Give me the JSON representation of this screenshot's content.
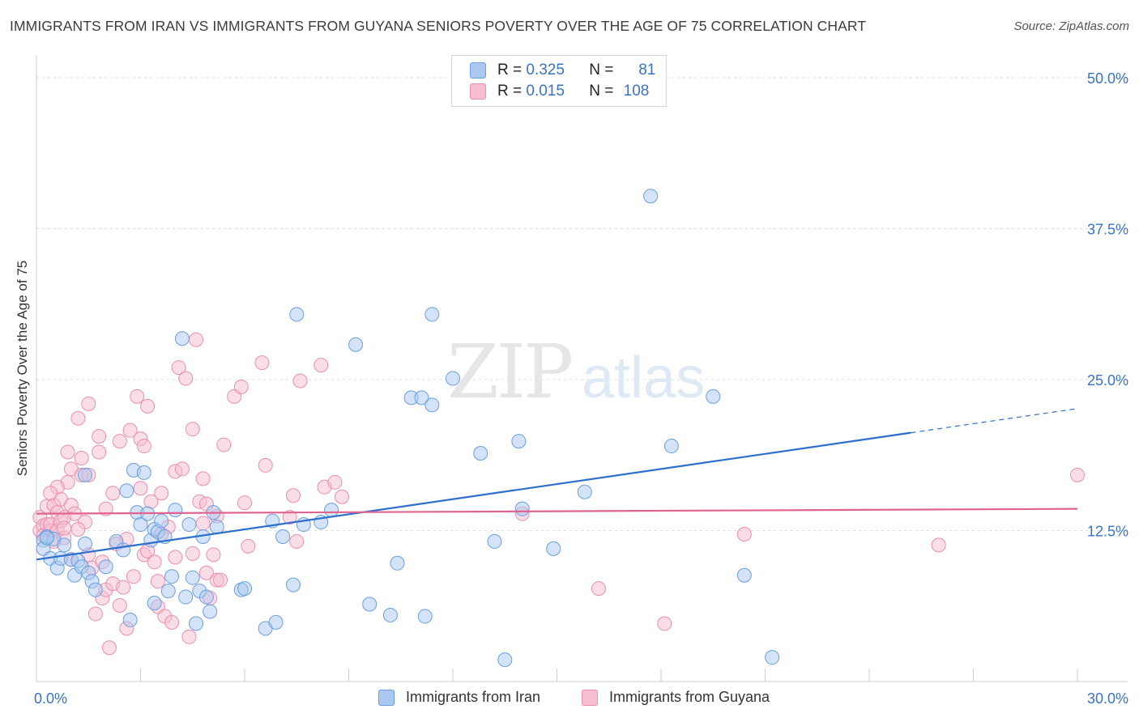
{
  "title": "IMMIGRANTS FROM IRAN VS IMMIGRANTS FROM GUYANA SENIORS POVERTY OVER THE AGE OF 75 CORRELATION CHART",
  "source": "Source: ZipAtlas.com",
  "watermark": {
    "zip": "ZIP",
    "atlas": "atlas"
  },
  "legend": {
    "rows": [
      {
        "r_label": "R =",
        "r_value": "0.325",
        "n_label": "N =",
        "n_value": "81"
      },
      {
        "r_label": "R =",
        "r_value": "0.015",
        "n_label": "N =",
        "n_value": "108"
      }
    ]
  },
  "colors": {
    "iran_fill": "#aac8f0",
    "iran_stroke": "#6a9fe0",
    "iran_line": "#2c6fce",
    "guyana_fill": "#f6bed0",
    "guyana_stroke": "#ea8fad",
    "guyana_line": "#e0648f",
    "tick_label": "#3a72c6",
    "grid": "#dedede"
  },
  "chart_data": {
    "type": "scatter",
    "title": "IMMIGRANTS FROM IRAN VS IMMIGRANTS FROM GUYANA SENIORS POVERTY OVER THE AGE OF 75 CORRELATION CHART",
    "xlabel": "",
    "ylabel": "Seniors Poverty Over the Age of 75",
    "xlim": [
      0,
      30
    ],
    "ylim": [
      0,
      50
    ],
    "x_tick_labels": [
      "0.0%",
      "30.0%"
    ],
    "y_ticks": [
      12.5,
      25.0,
      37.5,
      50.0
    ],
    "y_tick_labels": [
      "12.5%",
      "25.0%",
      "37.5%",
      "50.0%"
    ],
    "grid": "horizontal dashed",
    "legend_position": "top-center",
    "series": [
      {
        "name": "Immigrants from Iran",
        "r": 0.325,
        "n": 81,
        "trend": {
          "x0": 0,
          "y0": 10.1,
          "x1": 25.2,
          "y1": 20.6,
          "x_dash_end": 30,
          "y_dash_end": 22.6
        },
        "points": [
          [
            0.2,
            11.7
          ],
          [
            0.2,
            11.0
          ],
          [
            0.3,
            12.0
          ],
          [
            0.4,
            10.2
          ],
          [
            0.5,
            11.8
          ],
          [
            0.6,
            9.4
          ],
          [
            0.7,
            10.2
          ],
          [
            0.8,
            11.3
          ],
          [
            1.0,
            10.1
          ],
          [
            1.1,
            8.8
          ],
          [
            1.2,
            10.0
          ],
          [
            1.3,
            9.5
          ],
          [
            1.4,
            11.4
          ],
          [
            1.5,
            9.0
          ],
          [
            1.6,
            8.3
          ],
          [
            1.7,
            7.6
          ],
          [
            1.4,
            17.1
          ],
          [
            2.3,
            11.6
          ],
          [
            2.5,
            10.9
          ],
          [
            2.6,
            15.8
          ],
          [
            2.8,
            17.5
          ],
          [
            2.7,
            5.1
          ],
          [
            2.9,
            14.0
          ],
          [
            3.0,
            13.0
          ],
          [
            3.1,
            17.3
          ],
          [
            3.2,
            13.9
          ],
          [
            3.3,
            11.7
          ],
          [
            3.4,
            12.6
          ],
          [
            3.5,
            12.4
          ],
          [
            3.6,
            13.3
          ],
          [
            3.7,
            12.0
          ],
          [
            3.8,
            7.5
          ],
          [
            3.9,
            8.7
          ],
          [
            4.0,
            14.2
          ],
          [
            4.2,
            28.4
          ],
          [
            4.3,
            7.0
          ],
          [
            4.4,
            13.0
          ],
          [
            4.5,
            8.6
          ],
          [
            4.6,
            4.8
          ],
          [
            4.7,
            7.5
          ],
          [
            4.8,
            12.0
          ],
          [
            4.9,
            7.0
          ],
          [
            5.0,
            5.8
          ],
          [
            5.1,
            14.0
          ],
          [
            5.2,
            12.8
          ],
          [
            5.9,
            7.6
          ],
          [
            6.6,
            4.4
          ],
          [
            6.8,
            13.3
          ],
          [
            6.9,
            4.9
          ],
          [
            7.1,
            12.0
          ],
          [
            7.4,
            8.0
          ],
          [
            7.5,
            30.4
          ],
          [
            7.7,
            13.0
          ],
          [
            8.2,
            13.2
          ],
          [
            8.5,
            14.2
          ],
          [
            9.2,
            27.9
          ],
          [
            9.6,
            6.4
          ],
          [
            10.2,
            5.5
          ],
          [
            10.8,
            23.5
          ],
          [
            11.1,
            23.5
          ],
          [
            11.2,
            5.4
          ],
          [
            11.4,
            22.9
          ],
          [
            11.4,
            30.4
          ],
          [
            12.0,
            25.1
          ],
          [
            12.8,
            18.9
          ],
          [
            13.2,
            11.6
          ],
          [
            13.5,
            1.8
          ],
          [
            13.9,
            19.9
          ],
          [
            14.0,
            14.3
          ],
          [
            14.9,
            11.0
          ],
          [
            15.8,
            15.7
          ],
          [
            17.7,
            40.2
          ],
          [
            18.3,
            19.5
          ],
          [
            19.5,
            23.6
          ],
          [
            20.4,
            8.8
          ],
          [
            21.2,
            2.0
          ],
          [
            0.3,
            11.9
          ],
          [
            2.0,
            9.5
          ],
          [
            3.4,
            6.5
          ],
          [
            6.0,
            7.7
          ],
          [
            10.4,
            9.8
          ]
        ]
      },
      {
        "name": "Immigrants from Guyana",
        "r": 0.015,
        "n": 108,
        "trend": {
          "x0": 0,
          "y0": 13.9,
          "x1": 30,
          "y1": 14.3
        },
        "points": [
          [
            0.1,
            12.5
          ],
          [
            0.1,
            13.6
          ],
          [
            0.2,
            12.9
          ],
          [
            0.2,
            12.1
          ],
          [
            0.3,
            13.0
          ],
          [
            0.3,
            14.5
          ],
          [
            0.4,
            12.5
          ],
          [
            0.4,
            13.0
          ],
          [
            0.5,
            14.6
          ],
          [
            0.5,
            11.6
          ],
          [
            0.6,
            14.0
          ],
          [
            0.6,
            12.5
          ],
          [
            0.7,
            13.3
          ],
          [
            0.7,
            15.1
          ],
          [
            0.8,
            11.9
          ],
          [
            0.8,
            13.6
          ],
          [
            0.9,
            16.5
          ],
          [
            0.9,
            19.0
          ],
          [
            1.0,
            17.6
          ],
          [
            1.0,
            14.6
          ],
          [
            1.1,
            13.9
          ],
          [
            1.2,
            21.8
          ],
          [
            1.3,
            17.1
          ],
          [
            1.4,
            13.2
          ],
          [
            1.5,
            10.5
          ],
          [
            1.5,
            17.1
          ],
          [
            1.5,
            23.0
          ],
          [
            1.6,
            9.4
          ],
          [
            1.7,
            5.6
          ],
          [
            1.8,
            19.0
          ],
          [
            1.8,
            20.3
          ],
          [
            1.9,
            9.9
          ],
          [
            1.9,
            6.9
          ],
          [
            2.0,
            7.6
          ],
          [
            2.1,
            2.8
          ],
          [
            2.2,
            8.1
          ],
          [
            2.2,
            15.6
          ],
          [
            2.4,
            6.3
          ],
          [
            2.4,
            19.9
          ],
          [
            2.5,
            7.8
          ],
          [
            2.6,
            11.8
          ],
          [
            2.6,
            4.4
          ],
          [
            2.7,
            20.8
          ],
          [
            2.9,
            23.6
          ],
          [
            3.0,
            20.1
          ],
          [
            3.1,
            19.5
          ],
          [
            3.1,
            10.5
          ],
          [
            3.2,
            10.8
          ],
          [
            3.2,
            22.8
          ],
          [
            3.4,
            9.9
          ],
          [
            3.5,
            6.2
          ],
          [
            3.5,
            8.3
          ],
          [
            3.6,
            15.6
          ],
          [
            3.7,
            5.4
          ],
          [
            3.8,
            12.8
          ],
          [
            3.9,
            4.9
          ],
          [
            4.0,
            10.3
          ],
          [
            4.0,
            17.4
          ],
          [
            4.1,
            26.0
          ],
          [
            4.2,
            17.6
          ],
          [
            4.3,
            25.1
          ],
          [
            4.4,
            3.7
          ],
          [
            4.5,
            10.6
          ],
          [
            4.5,
            20.9
          ],
          [
            4.6,
            28.3
          ],
          [
            4.7,
            14.9
          ],
          [
            4.8,
            13.1
          ],
          [
            4.8,
            16.8
          ],
          [
            4.9,
            14.7
          ],
          [
            5.0,
            6.9
          ],
          [
            5.1,
            10.5
          ],
          [
            5.2,
            8.4
          ],
          [
            5.3,
            8.4
          ],
          [
            5.4,
            19.6
          ],
          [
            5.7,
            23.6
          ],
          [
            5.9,
            24.4
          ],
          [
            6.0,
            14.8
          ],
          [
            6.1,
            11.2
          ],
          [
            6.5,
            26.4
          ],
          [
            6.6,
            17.9
          ],
          [
            7.3,
            13.6
          ],
          [
            7.4,
            15.4
          ],
          [
            7.5,
            11.6
          ],
          [
            7.6,
            24.9
          ],
          [
            8.2,
            26.2
          ],
          [
            8.3,
            16.1
          ],
          [
            8.6,
            16.5
          ],
          [
            8.8,
            15.3
          ],
          [
            14.0,
            13.9
          ],
          [
            16.2,
            7.7
          ],
          [
            18.1,
            4.8
          ],
          [
            20.4,
            12.2
          ],
          [
            26.0,
            11.3
          ],
          [
            30.0,
            17.1
          ],
          [
            1.2,
            12.6
          ],
          [
            2.8,
            8.7
          ],
          [
            3.3,
            14.9
          ],
          [
            0.6,
            16.1
          ],
          [
            1.0,
            10.1
          ],
          [
            2.3,
            11.4
          ],
          [
            0.4,
            15.6
          ],
          [
            1.3,
            18.5
          ],
          [
            3.6,
            12.2
          ],
          [
            4.9,
            9.0
          ],
          [
            5.2,
            13.7
          ],
          [
            0.8,
            12.7
          ],
          [
            2.0,
            14.3
          ],
          [
            3.0,
            16.0
          ]
        ]
      }
    ]
  },
  "x_axis": {
    "left_label": "0.0%",
    "right_label": "30.0%"
  },
  "y_axis": {
    "label": "Seniors Poverty Over the Age of 75"
  },
  "bottom_legend": {
    "items": [
      "Immigrants from Iran",
      "Immigrants from Guyana"
    ]
  }
}
